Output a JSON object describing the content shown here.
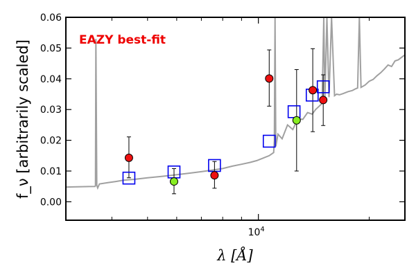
{
  "chart_data": {
    "type": "scatter",
    "ylabel": "f_ν [arbitrarily scaled]",
    "xlabel": "λ [Å]",
    "annotation": {
      "text": "EAZY best-fit",
      "color": "#ee0000"
    },
    "xscale": "log",
    "xlim": [
      3000,
      25000
    ],
    "ylim": [
      -0.006,
      0.06
    ],
    "yticks": [
      {
        "value": 0.0,
        "label": "0.00"
      },
      {
        "value": 0.01,
        "label": "0.01"
      },
      {
        "value": 0.02,
        "label": "0.02"
      },
      {
        "value": 0.03,
        "label": "0.03"
      },
      {
        "value": 0.04,
        "label": "0.04"
      },
      {
        "value": 0.05,
        "label": "0.05"
      },
      {
        "value": 0.06,
        "label": "0.06"
      }
    ],
    "xticks_major": [
      {
        "value": 10000,
        "label_base": "10",
        "label_exp": "4"
      }
    ],
    "xticks_minor": [
      4000,
      5000,
      6000,
      7000,
      8000,
      9000,
      20000
    ],
    "colors": {
      "spectrum": "#a0a0a0",
      "model_box": "#0000ee",
      "obs_red": "#ee1111",
      "obs_green": "#88ee22"
    },
    "series": [
      {
        "kind": "model_spectrum",
        "x": [
          3000,
          3300,
          3600,
          3610,
          3620,
          3640,
          3660,
          3700,
          3900,
          4100,
          4300,
          4600,
          5000,
          5400,
          5800,
          6200,
          6600,
          7000,
          7500,
          8000,
          8500,
          9000,
          9500,
          9900,
          10300,
          10700,
          11000,
          11050,
          11100,
          11150,
          11300,
          11600,
          12000,
          12400,
          12800,
          13200,
          13600,
          14000,
          14300,
          14600,
          14900,
          15050,
          15150,
          15350,
          15550,
          15800,
          16100,
          16300,
          16600,
          17000,
          17500,
          18000,
          18400,
          18600,
          18800,
          19000,
          19500,
          20000,
          20500,
          21000,
          21500,
          22000,
          22500,
          23000,
          23500,
          24000,
          24500,
          25000
        ],
        "y": [
          0.0048,
          0.0049,
          0.005,
          0.0053,
          0.053,
          0.0053,
          0.0045,
          0.0058,
          0.0062,
          0.0066,
          0.007,
          0.0073,
          0.0078,
          0.0082,
          0.0086,
          0.009,
          0.0094,
          0.0098,
          0.0103,
          0.0108,
          0.0116,
          0.0122,
          0.0128,
          0.0134,
          0.0142,
          0.015,
          0.016,
          0.02,
          0.06,
          0.018,
          0.022,
          0.0205,
          0.025,
          0.0235,
          0.027,
          0.0268,
          0.029,
          0.0285,
          0.03,
          0.031,
          0.032,
          0.06,
          0.033,
          0.06,
          0.034,
          0.06,
          0.0345,
          0.035,
          0.0348,
          0.0352,
          0.0358,
          0.0362,
          0.0368,
          0.037,
          0.06,
          0.0372,
          0.038,
          0.0392,
          0.0398,
          0.041,
          0.042,
          0.0432,
          0.0445,
          0.044,
          0.0458,
          0.0462,
          0.047,
          0.0478
        ]
      },
      {
        "kind": "model_photometry",
        "x": [
          4450,
          5900,
          7600,
          10700,
          12500,
          14000,
          15000
        ],
        "y": [
          0.0077,
          0.0097,
          0.0118,
          0.0197,
          0.0293,
          0.0347,
          0.0374
        ]
      },
      {
        "kind": "observed",
        "points": [
          {
            "x": 4450,
            "y": 0.0143,
            "err_low": 0.0065,
            "err_high": 0.0068,
            "color": "red"
          },
          {
            "x": 5900,
            "y": 0.0066,
            "err_low": 0.004,
            "err_high": 0.0042,
            "color": "green"
          },
          {
            "x": 7600,
            "y": 0.0086,
            "err_low": 0.0042,
            "err_high": 0.0045,
            "color": "red"
          },
          {
            "x": 10700,
            "y": 0.0401,
            "err_low": 0.009,
            "err_high": 0.0093,
            "color": "red"
          },
          {
            "x": 12700,
            "y": 0.0265,
            "err_low": 0.0165,
            "err_high": 0.0165,
            "color": "green"
          },
          {
            "x": 14050,
            "y": 0.0363,
            "err_low": 0.0135,
            "err_high": 0.0135,
            "color": "red"
          },
          {
            "x": 15000,
            "y": 0.0331,
            "err_low": 0.0083,
            "err_high": 0.0082,
            "color": "red"
          }
        ]
      }
    ]
  }
}
